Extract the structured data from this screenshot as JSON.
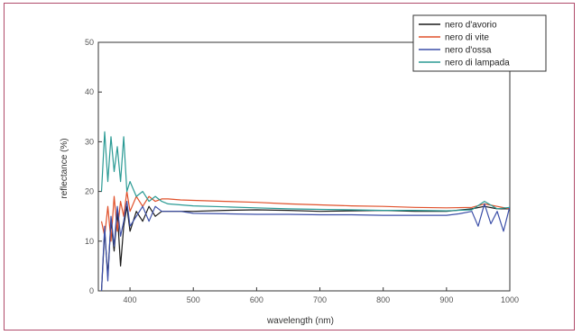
{
  "chart_data": {
    "type": "line",
    "title": "",
    "xlabel": "wavelength (nm)",
    "ylabel": "reflectance (%)",
    "xlim": [
      350,
      1000
    ],
    "ylim": [
      0,
      50
    ],
    "xticks": [
      400,
      500,
      600,
      700,
      800,
      900,
      1000
    ],
    "yticks": [
      0,
      10,
      20,
      30,
      40,
      50
    ],
    "grid": false,
    "legend": "top-right",
    "series": [
      {
        "name": "nero d'avorio",
        "color": "#1a1a1a",
        "x": [
          355,
          360,
          365,
          370,
          375,
          380,
          385,
          390,
          395,
          400,
          410,
          420,
          430,
          440,
          450,
          460,
          480,
          500,
          550,
          600,
          650,
          700,
          750,
          800,
          850,
          900,
          940,
          960,
          980,
          1000
        ],
        "y": [
          0,
          12,
          3,
          14,
          8,
          16,
          5,
          13,
          17,
          12,
          16,
          14,
          17,
          15,
          16,
          16,
          16,
          16,
          16.2,
          16.3,
          16.2,
          16,
          16.1,
          16.2,
          16,
          16,
          16.5,
          17,
          16.5,
          16.5
        ]
      },
      {
        "name": "nero di vite",
        "color": "#e0502a",
        "x": [
          355,
          360,
          365,
          370,
          375,
          380,
          385,
          390,
          395,
          400,
          410,
          420,
          430,
          440,
          450,
          460,
          480,
          500,
          550,
          600,
          650,
          700,
          750,
          800,
          850,
          900,
          940,
          960,
          980,
          1000
        ],
        "y": [
          14,
          11,
          17,
          10,
          19,
          12,
          18,
          15,
          20,
          16,
          19,
          17,
          19,
          18,
          18.5,
          18.5,
          18.3,
          18.2,
          18,
          17.8,
          17.5,
          17.3,
          17.1,
          17,
          16.8,
          16.7,
          16.8,
          17.5,
          17,
          16.5
        ]
      },
      {
        "name": "nero d'ossa",
        "color": "#3c4fa8",
        "x": [
          355,
          360,
          365,
          370,
          375,
          380,
          385,
          390,
          395,
          400,
          410,
          420,
          430,
          440,
          450,
          460,
          480,
          500,
          550,
          600,
          650,
          700,
          750,
          800,
          850,
          900,
          920,
          940,
          950,
          960,
          970,
          980,
          990,
          1000
        ],
        "y": [
          0,
          13,
          2,
          15,
          9,
          17,
          11,
          14,
          18,
          13,
          15,
          17,
          14,
          17,
          16,
          16,
          16,
          15.6,
          15.5,
          15.4,
          15.4,
          15.3,
          15.3,
          15.2,
          15.2,
          15.2,
          15.5,
          16,
          13,
          17.5,
          13.5,
          16,
          12,
          17
        ]
      },
      {
        "name": "nero di lampada",
        "color": "#2a9a94",
        "x": [
          355,
          360,
          365,
          370,
          375,
          380,
          385,
          390,
          395,
          400,
          410,
          420,
          430,
          440,
          450,
          460,
          480,
          500,
          550,
          600,
          650,
          700,
          750,
          800,
          850,
          900,
          940,
          960,
          980,
          1000
        ],
        "y": [
          20,
          32,
          22,
          31,
          24,
          29,
          22,
          31,
          20,
          22,
          19,
          20,
          18,
          19,
          18,
          17.5,
          17.3,
          17.1,
          16.9,
          16.7,
          16.5,
          16.4,
          16.3,
          16.2,
          16.2,
          16.1,
          16.3,
          18,
          16.5,
          16.8
        ]
      }
    ]
  }
}
